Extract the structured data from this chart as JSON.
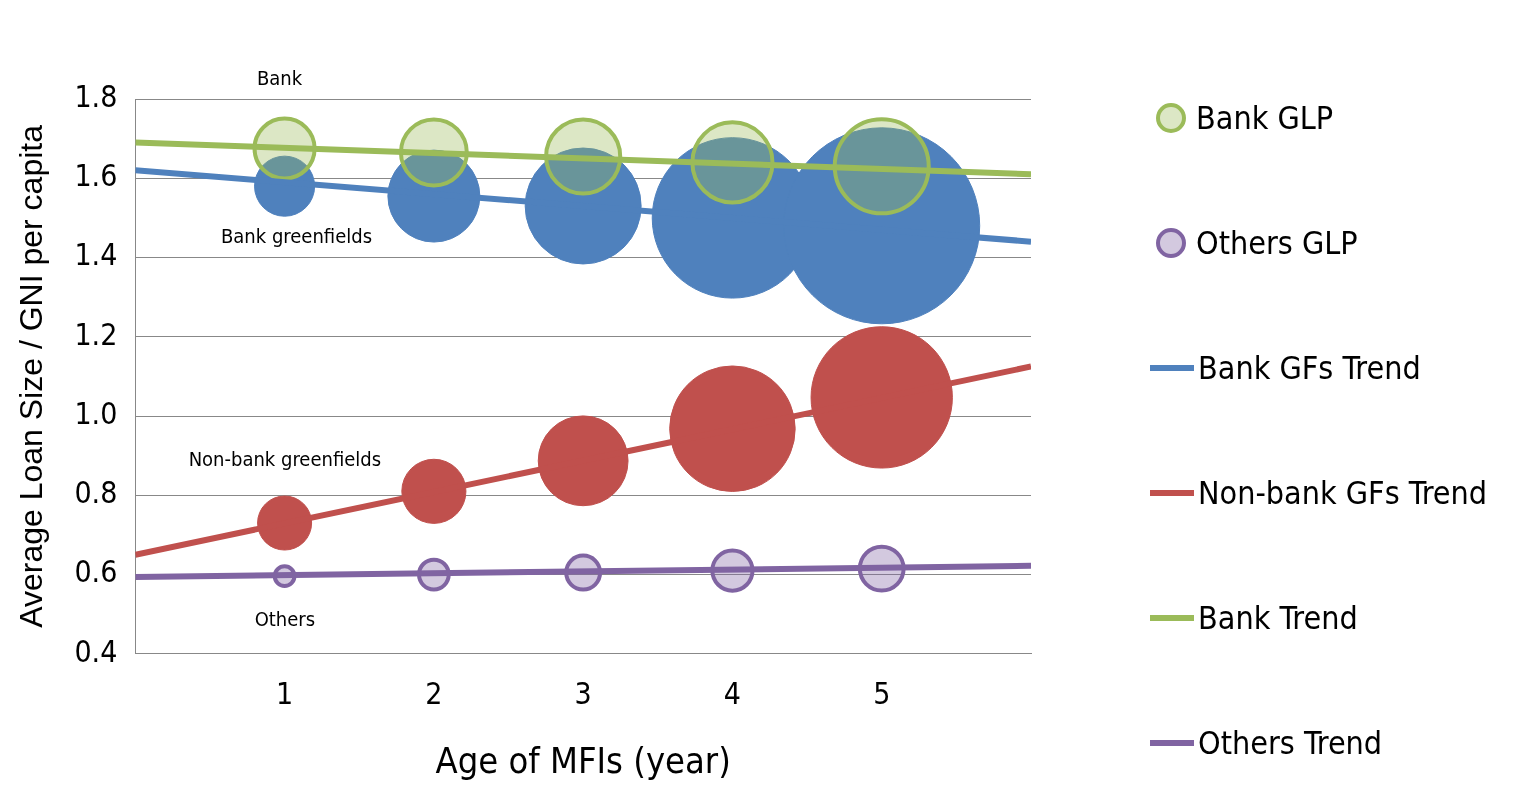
{
  "chart_data": {
    "type": "bubble",
    "xlabel": "Age of MFIs (year)",
    "ylabel": "Average Loan Size / GNI per capita",
    "xlim": [
      0,
      6
    ],
    "xticks": [
      1,
      2,
      3,
      4,
      5
    ],
    "ylim": [
      0.4,
      1.8
    ],
    "yticks": [
      0.4,
      0.6,
      0.8,
      {
        "value": 1,
        "label": "1.0"
      },
      1.2,
      1.4,
      1.6,
      1.8
    ],
    "grid": "y",
    "legend": "right",
    "series": [
      {
        "color": "#4f81bd",
        "x": [
          1,
          2,
          3,
          4,
          5
        ],
        "values": [
          1.58,
          1.555,
          1.53,
          1.5,
          1.48
        ],
        "sizes": [
          0.094,
          0.22,
          0.35,
          0.67,
          1
        ]
      },
      {
        "name": "Bank GLP",
        "color": "#9bbb59",
        "x": [
          1,
          2,
          3,
          4,
          5
        ],
        "values": [
          1.675,
          1.665,
          1.655,
          1.64,
          1.63
        ],
        "sizes": [
          0.094,
          0.113,
          0.143,
          0.167,
          0.23
        ]
      },
      {
        "color": "#c0504d",
        "x": [
          1,
          2,
          3,
          4,
          5
        ],
        "values": [
          0.73,
          0.81,
          0.887,
          0.968,
          1.047
        ],
        "sizes": [
          0.076,
          0.107,
          0.21,
          0.41,
          0.52
        ]
      },
      {
        "name": "Others GLP",
        "color": "#8064a2",
        "x": [
          1,
          2,
          3,
          4,
          5
        ],
        "values": [
          0.596,
          0.6,
          0.605,
          0.61,
          0.615
        ],
        "sizes": [
          0.01,
          0.023,
          0.03,
          0.042,
          0.05
        ]
      },
      {
        "type": "line",
        "name": "Bank GFs Trend",
        "color": "#4f81bd",
        "x": [
          0,
          6
        ],
        "values": [
          1.62,
          1.44
        ]
      },
      {
        "type": "line",
        "name": "Non-bank GFs Trend",
        "color": "#c0504d",
        "x": [
          0,
          6
        ],
        "values": [
          0.65,
          1.125
        ]
      },
      {
        "type": "line",
        "name": "Bank Trend",
        "color": "#9bbb59",
        "x": [
          0,
          6
        ],
        "values": [
          1.69,
          1.61
        ]
      },
      {
        "type": "line",
        "name": "Others Trend",
        "color": "#8064a2",
        "x": [
          0,
          6
        ],
        "values": [
          0.594,
          0.622
        ]
      }
    ],
    "annotations": [
      "Bank",
      "Bank greenfields",
      "Non-bank greenfields",
      "Others"
    ]
  }
}
